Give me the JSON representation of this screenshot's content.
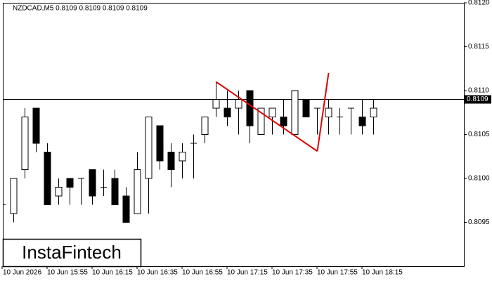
{
  "chart_data": {
    "type": "candlestick",
    "title": "NZDCAD,M5  0.8109 0.8109 0.8109 0.8109",
    "watermark": "InstaFintech",
    "categories": [
      "10 Jun 2026",
      null,
      null,
      null,
      "10 Jun 15:55",
      null,
      null,
      null,
      "10 Jun 16:15",
      null,
      null,
      null,
      "10 Jun 16:35",
      null,
      null,
      null,
      "10 Jun 16:55",
      null,
      null,
      null,
      "10 Jun 17:15",
      null,
      null,
      null,
      "10 Jun 17:35",
      null,
      null,
      null,
      "10 Jun 17:55",
      null,
      null,
      null,
      "10 Jun 18:15",
      null
    ],
    "open": [
      0.8097,
      0.8096,
      0.8101,
      0.8108,
      0.8103,
      0.8098,
      0.81,
      0.81,
      0.8101,
      0.8099,
      0.81,
      0.8098,
      0.8096,
      0.81,
      0.8106,
      0.8103,
      0.8102,
      0.8104,
      0.8105,
      0.8108,
      0.8108,
      0.8108,
      0.811,
      0.8105,
      0.8107,
      0.8107,
      0.8105,
      0.8109,
      0.8108,
      0.8107,
      0.8107,
      0.8108,
      0.8107,
      0.8107
    ],
    "high": [
      0.8099,
      0.81,
      0.8108,
      0.8108,
      0.8104,
      0.81,
      0.81,
      0.81,
      0.8101,
      0.8101,
      0.8101,
      0.8099,
      0.8103,
      0.8107,
      0.8106,
      0.8104,
      0.8104,
      0.8105,
      0.8107,
      0.8111,
      0.811,
      0.811,
      0.811,
      0.8108,
      0.8108,
      0.8109,
      0.811,
      0.8109,
      0.8108,
      0.8109,
      0.8108,
      0.8108,
      0.8109,
      0.8109
    ],
    "low": [
      0.8095,
      0.8095,
      0.81,
      0.8103,
      0.8097,
      0.8097,
      0.8097,
      0.8097,
      0.8097,
      0.8098,
      0.8097,
      0.8095,
      0.8096,
      0.8096,
      0.8101,
      0.8099,
      0.81,
      0.81,
      0.8104,
      0.8107,
      0.8106,
      0.8105,
      0.8104,
      0.8105,
      0.8105,
      0.8105,
      0.8105,
      0.8107,
      0.8105,
      0.8105,
      0.8105,
      0.8105,
      0.8105,
      0.8105
    ],
    "close": [
      0.8097,
      0.81,
      0.8107,
      0.8104,
      0.8097,
      0.8099,
      0.8099,
      0.81,
      0.8098,
      0.8099,
      0.8097,
      0.8095,
      0.8101,
      0.8107,
      0.8102,
      0.8101,
      0.8103,
      0.8104,
      0.8107,
      0.8109,
      0.8107,
      0.8109,
      0.8106,
      0.8108,
      0.8108,
      0.8106,
      0.811,
      0.8107,
      0.8108,
      0.8108,
      0.8107,
      0.8108,
      0.8106,
      0.8108
    ],
    "up_color": "#ffffff",
    "down_color": "#000000",
    "ylim": [
      0.809,
      0.812
    ],
    "yticks": [
      0.8095,
      {
        "value": 0.81,
        "label": "0.8100"
      },
      0.8105,
      {
        "value": 0.811,
        "label": "0.8110"
      },
      0.8115,
      {
        "value": 0.812,
        "label": "0.8120"
      }
    ],
    "last_price": 0.8109,
    "pattern": {
      "color": "#e00000",
      "points": [
        {
          "index": 19,
          "value": 0.8111
        },
        {
          "index": 28,
          "value": 0.81031
        },
        {
          "index": 29,
          "value": 0.8112
        }
      ]
    }
  }
}
